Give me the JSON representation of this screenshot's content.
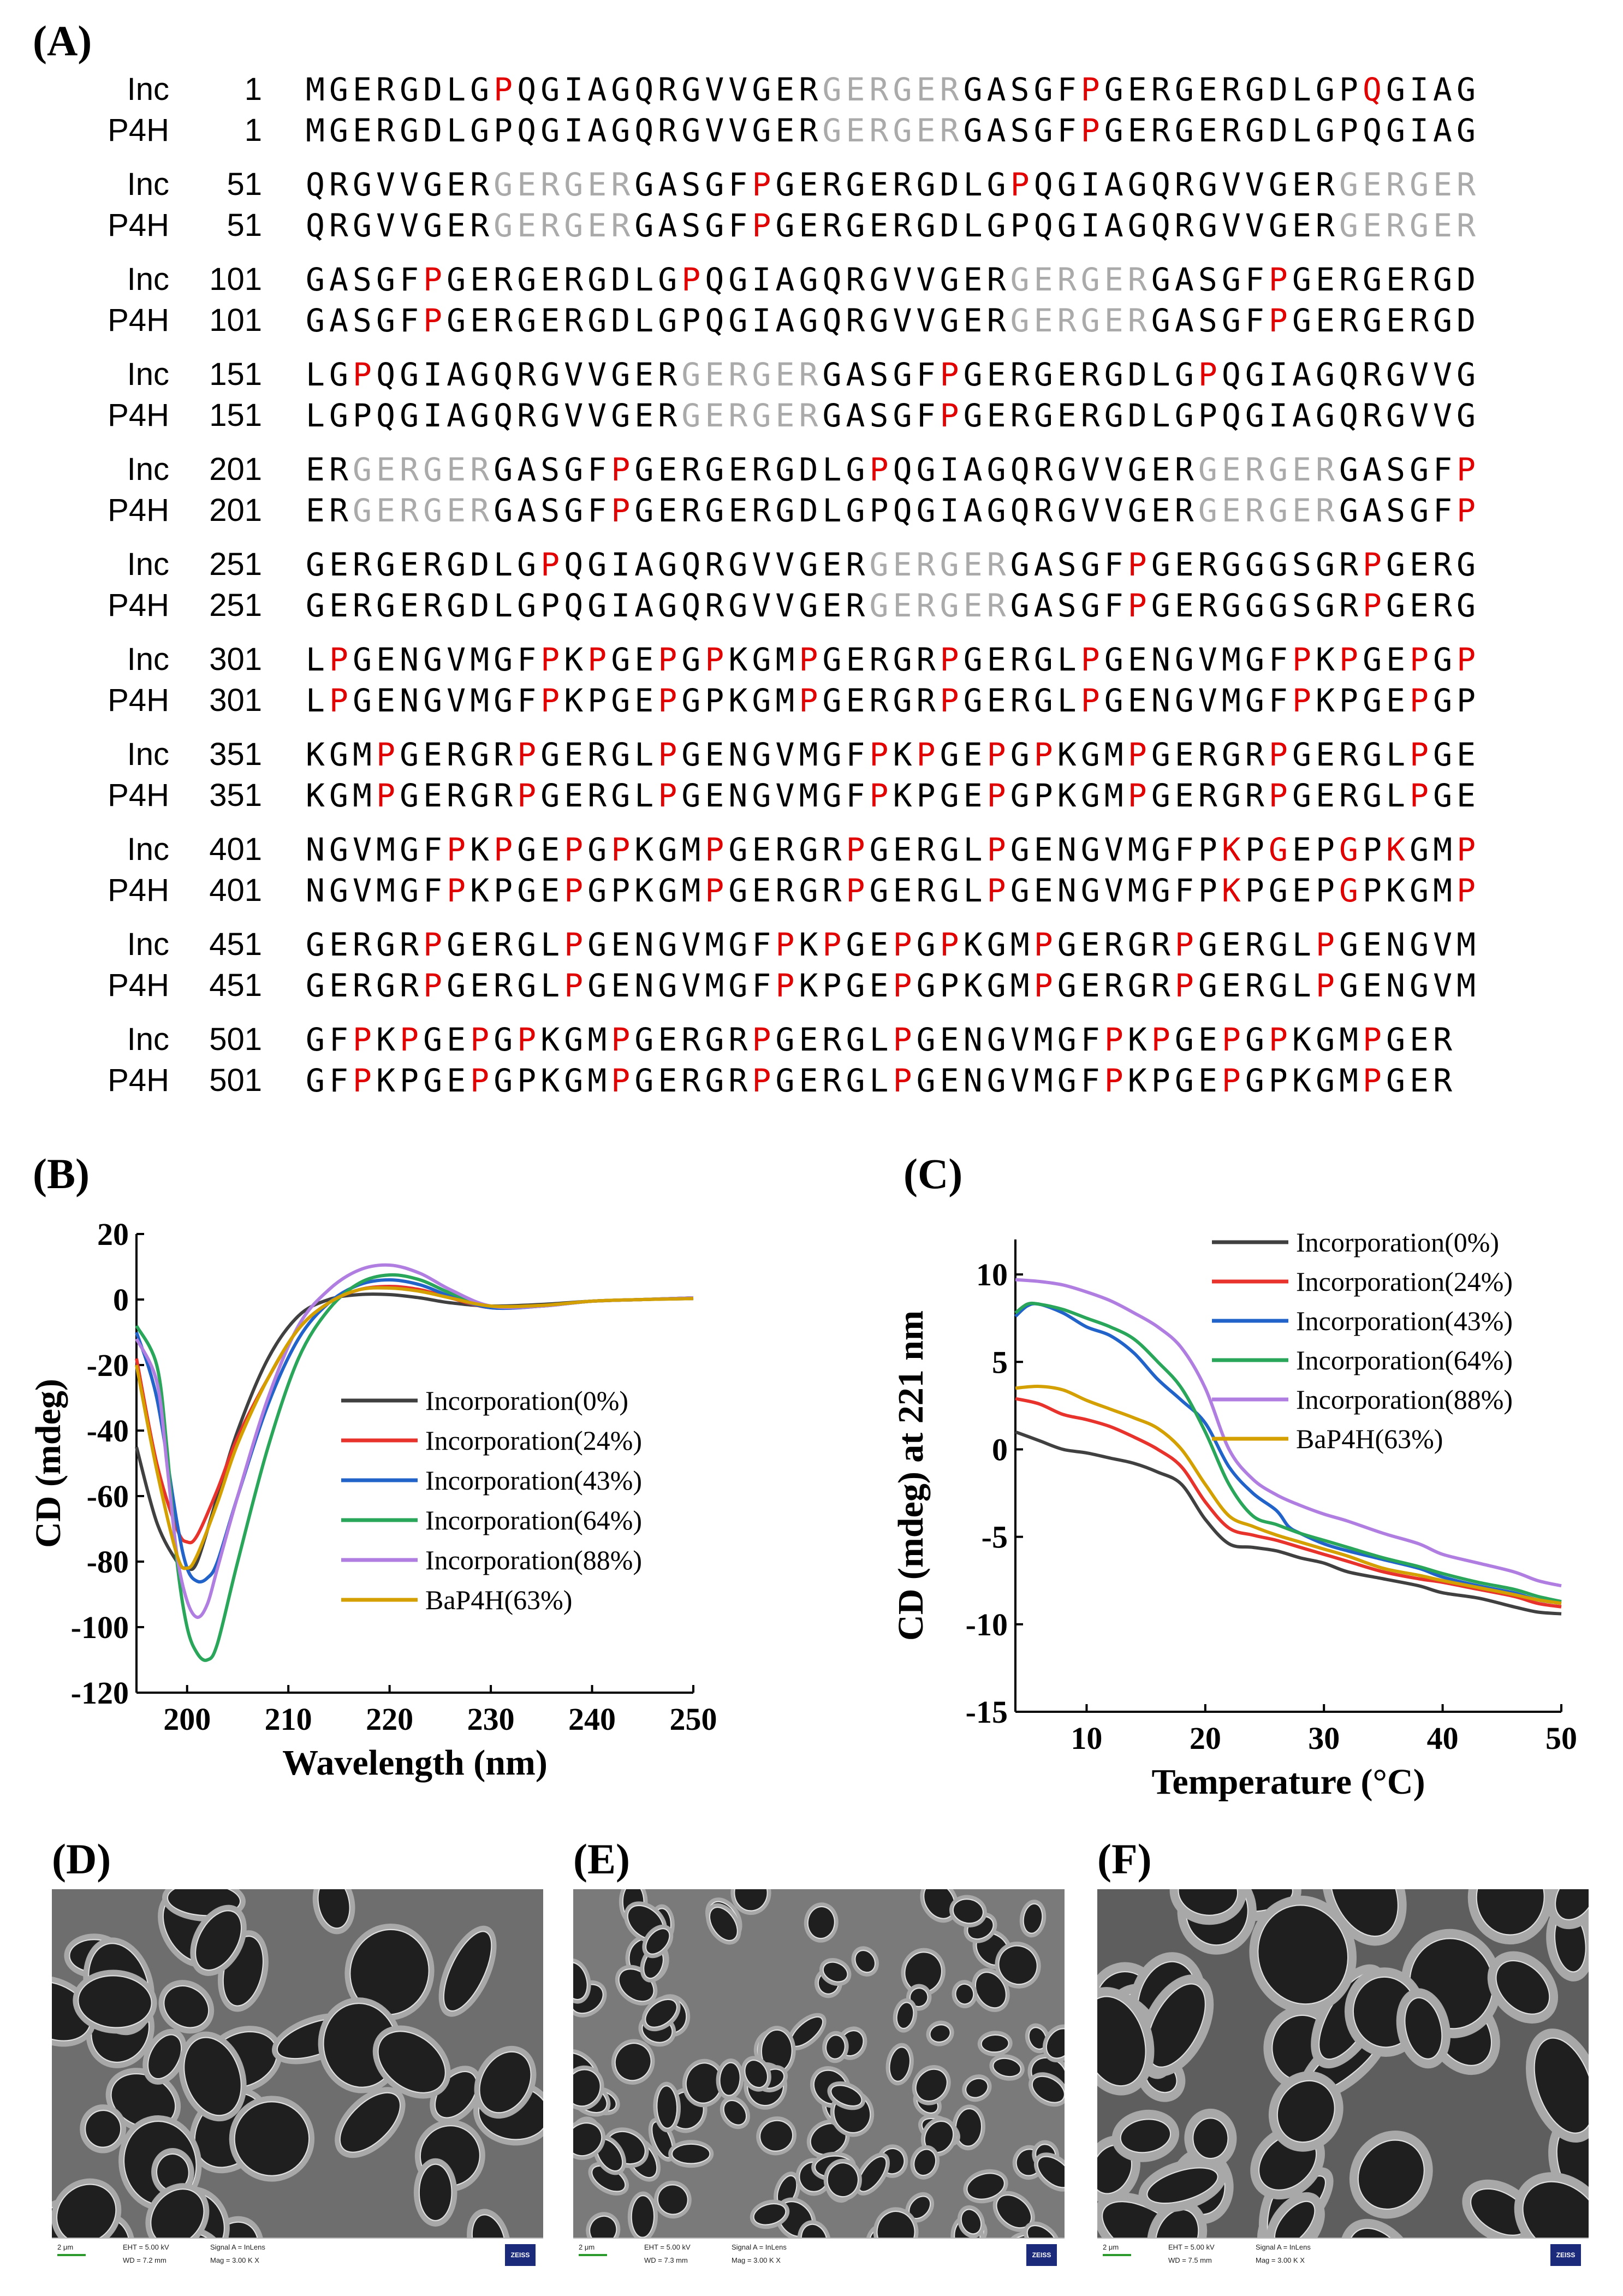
{
  "panel_labels": {
    "A": "(A)",
    "B": "(B)",
    "C": "(C)",
    "D": "(D)",
    "E": "(E)",
    "F": "(F)"
  },
  "alignment": {
    "rows": [
      {
        "name": "Inc",
        "num": "1",
        "seq": "MGERGDLGPQGIAGQRGVVGERGERGERGASGFPGERGERGDLGPQGIAG"
      },
      {
        "name": "P4H",
        "num": "1",
        "seq": "MGERGDLGPQGIAGQRGVVGERGERGERGASGFPGERGERGDLGPQGIAG"
      },
      {
        "name": "Inc",
        "num": "51",
        "seq": "QRGVVGERGERGERGASGFPGERGERGDLGPQGIAGQRGVVGERGERGER"
      },
      {
        "name": "P4H",
        "num": "51",
        "seq": "QRGVVGERGERGERGASGFPGERGERGDLGPQGIAGQRGVVGERGERGER"
      },
      {
        "name": "Inc",
        "num": "101",
        "seq": "GASGFPGERGERGDLGPQGIAGQRGVVGERGERGERGASGFPGERGERGD"
      },
      {
        "name": "P4H",
        "num": "101",
        "seq": "GASGFPGERGERGDLGPQGIAGQRGVVGERGERGERGASGFPGERGERGD"
      },
      {
        "name": "Inc",
        "num": "151",
        "seq": "LGPQGIAGQRGVVGERGERGERGASGFPGERGERGDLGPQGIAGQRGVVG"
      },
      {
        "name": "P4H",
        "num": "151",
        "seq": "LGPQGIAGQRGVVGERGERGERGASGFPGERGERGDLGPQGIAGQRGVVG"
      },
      {
        "name": "Inc",
        "num": "201",
        "seq": "ERGERGERGASGFPGERGERGDLGPQGIAGQRGVVGERGERGERGASGFP"
      },
      {
        "name": "P4H",
        "num": "201",
        "seq": "ERGERGERGASGFPGERGERGDLGPQGIAGQRGVVGERGERGERGASGFP"
      },
      {
        "name": "Inc",
        "num": "251",
        "seq": "GERGERGDLGPQGIAGQRGVVGERGERGERGASGFPGERGGGSGRPGERG"
      },
      {
        "name": "P4H",
        "num": "251",
        "seq": "GERGERGDLGPQGIAGQRGVVGERGERGERGASGFPGERGGGSGRPGERG"
      },
      {
        "name": "Inc",
        "num": "301",
        "seq": "LPGENGVMGFPKPGEPGPKGMPGERGRPGERGLPGENGVMGFPKPGEPGP"
      },
      {
        "name": "P4H",
        "num": "301",
        "seq": "LPGENGVMGFPKPGEPGPKGMPGERGRPGERGLPGENGVMGFPKPGEPGP"
      },
      {
        "name": "Inc",
        "num": "351",
        "seq": "KGMPGERGRPGERGLPGENGVMGFPKPGEPGPKGMPGERGRPGERGLPGE"
      },
      {
        "name": "P4H",
        "num": "351",
        "seq": "KGMPGERGRPGERGLPGENGVMGFPKPGEPGPKGMPGERGRPGERGLPGE"
      },
      {
        "name": "Inc",
        "num": "401",
        "seq": "NGVMGFPKPGEPGPKGMPGERGRPGERGLPGENGVMGFPKPGEPGPKGMP"
      },
      {
        "name": "P4H",
        "num": "401",
        "seq": "NGVMGFPKPGEPGPKGMPGERGRPGERGLPGENGVMGFPKPGEPGPKGMP"
      },
      {
        "name": "Inc",
        "num": "451",
        "seq": "GERGRPGERGLPGENGVMGFPKPGEPGPKGMPGERGRPGERGLPGENGVM"
      },
      {
        "name": "P4H",
        "num": "451",
        "seq": "GERGRPGERGLPGENGVMGFPKPGEPGPKGMPGERGRPGERGLPGENGVM"
      },
      {
        "name": "Inc",
        "num": "501",
        "seq": "GFPKPGEPGPKGMPGERGRPGERGLPGENGVMGFPKPGEPGPKGMPGER"
      },
      {
        "name": "P4H",
        "num": "501",
        "seq": "GFPKPGEPGPKGMPGERGRPGERGLPGENGVMGFPKPGEPGPKGMPGER"
      }
    ],
    "marks": [
      {
        "r": [
          8,
          33,
          45
        ],
        "gr": [
          22,
          28
        ]
      },
      {
        "r": [
          33
        ],
        "gr": [
          22,
          28
        ]
      },
      {
        "r": [
          19,
          30
        ],
        "gr": [
          8,
          14,
          44,
          50
        ]
      },
      {
        "r": [
          19
        ],
        "gr": [
          8,
          14,
          44,
          50
        ]
      },
      {
        "r": [
          5,
          16,
          41
        ],
        "gr": [
          30,
          36
        ]
      },
      {
        "r": [
          5,
          41
        ],
        "gr": [
          30,
          36
        ]
      },
      {
        "r": [
          2,
          27,
          38
        ],
        "gr": [
          16,
          22
        ]
      },
      {
        "r": [
          27
        ],
        "gr": [
          16,
          22
        ]
      },
      {
        "r": [
          13,
          24,
          49
        ],
        "gr": [
          2,
          8,
          38,
          44
        ]
      },
      {
        "r": [
          13,
          49
        ],
        "gr": [
          2,
          8,
          38,
          44
        ]
      },
      {
        "r": [
          10,
          35,
          45
        ],
        "gr": [
          24,
          30
        ]
      },
      {
        "r": [
          35,
          45
        ],
        "gr": [
          24,
          30
        ]
      },
      {
        "r": [
          1,
          10,
          12,
          15,
          17,
          21,
          27,
          33,
          42,
          44,
          47,
          49
        ],
        "gr": []
      },
      {
        "r": [
          1,
          10,
          15,
          21,
          27,
          33,
          42,
          47
        ],
        "gr": []
      },
      {
        "r": [
          3,
          9,
          15,
          24,
          26,
          29,
          31,
          35,
          41,
          47
        ],
        "gr": []
      },
      {
        "r": [
          3,
          9,
          15,
          24,
          29,
          35,
          41,
          47
        ],
        "gr": []
      },
      {
        "r": [
          6,
          8,
          11,
          13,
          17,
          23,
          29,
          39,
          41,
          44,
          46,
          49
        ],
        "gr": []
      },
      {
        "r": [
          6,
          11,
          17,
          23,
          29,
          39,
          44,
          49
        ],
        "gr": []
      },
      {
        "r": [
          5,
          11,
          20,
          22,
          25,
          27,
          31,
          37,
          43
        ],
        "gr": []
      },
      {
        "r": [
          5,
          11,
          20,
          25,
          31,
          37,
          43
        ],
        "gr": []
      },
      {
        "r": [
          2,
          4,
          7,
          9,
          13,
          19,
          25,
          34,
          36,
          39,
          41,
          45
        ],
        "gr": []
      },
      {
        "r": [
          2,
          7,
          13,
          19,
          25,
          34,
          39,
          45
        ],
        "gr": []
      }
    ]
  },
  "chart_data": [
    {
      "type": "line",
      "panel": "B",
      "xlabel": "Wavelength (nm)",
      "ylabel": "CD (mdeg)",
      "xlim": [
        195,
        250
      ],
      "ylim": [
        -120,
        20
      ],
      "xticks": [
        "200",
        "210",
        "220",
        "230",
        "240",
        "250"
      ],
      "yticks": [
        "20",
        "0",
        "-20",
        "-40",
        "-60",
        "-80",
        "-100",
        "-120"
      ],
      "legend": "center-right",
      "series": [
        {
          "name": "Incorporation(0%)",
          "color": "#404040",
          "x": [
            195,
            197,
            199,
            200,
            201,
            203,
            205,
            208,
            211,
            214,
            217,
            220,
            223,
            226,
            230,
            235,
            240,
            245,
            250
          ],
          "y": [
            -45,
            -68,
            -80,
            -82,
            -80,
            -60,
            -40,
            -18,
            -5,
            0,
            1.5,
            1.5,
            0.5,
            -1,
            -2,
            -1.5,
            -0.5,
            0,
            0.3
          ]
        },
        {
          "name": "Incorporation(24%)",
          "color": "#e8322c",
          "x": [
            195,
            197,
            199,
            200,
            201,
            203,
            205,
            208,
            211,
            214,
            217,
            220,
            223,
            226,
            230,
            235,
            240,
            245,
            250
          ],
          "y": [
            -18,
            -50,
            -70,
            -74,
            -72,
            -58,
            -42,
            -24,
            -9,
            -1,
            3,
            4,
            3,
            0.5,
            -2.5,
            -2,
            -0.5,
            0,
            0.5
          ]
        },
        {
          "name": "Incorporation(43%)",
          "color": "#2163c9",
          "x": [
            195,
            197,
            199,
            200,
            201,
            202,
            203,
            205,
            208,
            211,
            214,
            217,
            220,
            223,
            226,
            230,
            235,
            240,
            245,
            250
          ],
          "y": [
            -10,
            -30,
            -68,
            -82,
            -86,
            -85,
            -80,
            -60,
            -32,
            -12,
            -1,
            4.5,
            6,
            4.5,
            1,
            -2.5,
            -2,
            -0.5,
            0,
            0.5
          ]
        },
        {
          "name": "Incorporation(64%)",
          "color": "#2aa65a",
          "x": [
            195,
            197,
            198,
            199,
            200,
            201,
            202,
            203,
            205,
            208,
            211,
            214,
            217,
            220,
            223,
            226,
            230,
            235,
            240,
            245,
            250
          ],
          "y": [
            -8,
            -20,
            -45,
            -80,
            -100,
            -108,
            -110,
            -105,
            -80,
            -45,
            -18,
            -3,
            5,
            7.5,
            6,
            2,
            -2,
            -2,
            -0.5,
            0,
            0.5
          ]
        },
        {
          "name": "Incorporation(88%)",
          "color": "#b07ee0",
          "x": [
            195,
            197,
            198,
            199,
            200,
            201,
            202,
            203,
            205,
            208,
            211,
            214,
            217,
            220,
            223,
            226,
            230,
            235,
            240,
            245,
            250
          ],
          "y": [
            -12,
            -25,
            -50,
            -78,
            -92,
            -97,
            -93,
            -82,
            -60,
            -30,
            -8,
            3,
            9,
            10.5,
            8,
            3,
            -2,
            -2,
            -0.5,
            0,
            0.5
          ]
        },
        {
          "name": "BaP4H(63%)",
          "color": "#d4a000",
          "x": [
            195,
            197,
            199,
            200,
            201,
            203,
            205,
            208,
            211,
            214,
            217,
            220,
            223,
            226,
            230,
            235,
            240,
            245,
            250
          ],
          "y": [
            -20,
            -52,
            -78,
            -82,
            -78,
            -62,
            -44,
            -24,
            -9,
            -1,
            3,
            3.5,
            2.5,
            0.5,
            -2,
            -1.8,
            -0.5,
            0,
            0.3
          ]
        }
      ]
    },
    {
      "type": "line",
      "panel": "C",
      "xlabel": "Temperature (°C)",
      "ylabel": "CD (mdeg) at 221 nm",
      "xlim": [
        4,
        50
      ],
      "ylim": [
        -15,
        12
      ],
      "xticks": [
        "10",
        "20",
        "30",
        "40",
        "50"
      ],
      "yticks": [
        "10",
        "5",
        "0",
        "-5",
        "-10",
        "-15"
      ],
      "legend": "top-right",
      "series": [
        {
          "name": "Incorporation(0%)",
          "color": "#404040",
          "x": [
            4,
            6,
            8,
            10,
            12,
            14,
            16,
            18,
            20,
            22,
            24,
            26,
            28,
            30,
            32,
            35,
            38,
            40,
            43,
            46,
            48,
            50
          ],
          "y": [
            1,
            0.5,
            0,
            -0.2,
            -0.5,
            -0.8,
            -1.3,
            -2,
            -4,
            -5.4,
            -5.6,
            -5.8,
            -6.2,
            -6.5,
            -7,
            -7.4,
            -7.8,
            -8.2,
            -8.5,
            -9,
            -9.3,
            -9.4
          ]
        },
        {
          "name": "Incorporation(24%)",
          "color": "#e8322c",
          "x": [
            4,
            6,
            8,
            10,
            12,
            14,
            16,
            18,
            20,
            22,
            24,
            26,
            28,
            30,
            32,
            35,
            38,
            40,
            43,
            46,
            48,
            50
          ],
          "y": [
            2.9,
            2.6,
            2,
            1.7,
            1.3,
            0.7,
            0,
            -1,
            -3,
            -4.5,
            -4.9,
            -5.2,
            -5.6,
            -6,
            -6.4,
            -7,
            -7.4,
            -7.6,
            -8,
            -8.4,
            -8.8,
            -9
          ]
        },
        {
          "name": "Incorporation(43%)",
          "color": "#2163c9",
          "x": [
            4,
            5,
            6,
            8,
            10,
            12,
            14,
            16,
            18,
            20,
            22,
            24,
            26,
            27,
            28,
            30,
            32,
            35,
            38,
            40,
            43,
            46,
            48,
            50
          ],
          "y": [
            7.6,
            8.2,
            8.3,
            7.8,
            7,
            6.5,
            5.5,
            4,
            2.8,
            1.5,
            -1,
            -2.5,
            -3.5,
            -4.4,
            -4.8,
            -5.4,
            -5.8,
            -6.3,
            -6.8,
            -7.3,
            -7.8,
            -8.2,
            -8.6,
            -8.8
          ]
        },
        {
          "name": "Incorporation(64%)",
          "color": "#2aa65a",
          "x": [
            4,
            5,
            6,
            8,
            10,
            12,
            14,
            16,
            18,
            20,
            22,
            24,
            26,
            28,
            30,
            32,
            35,
            38,
            40,
            43,
            46,
            48,
            50
          ],
          "y": [
            7.8,
            8.3,
            8.3,
            8,
            7.5,
            7,
            6.3,
            5,
            3.5,
            1,
            -2,
            -3.8,
            -4.3,
            -4.8,
            -5.2,
            -5.6,
            -6.2,
            -6.7,
            -7.1,
            -7.6,
            -8,
            -8.4,
            -8.7
          ]
        },
        {
          "name": "Incorporation(88%)",
          "color": "#b07ee0",
          "x": [
            4,
            6,
            8,
            10,
            12,
            14,
            16,
            18,
            20,
            22,
            24,
            26,
            28,
            30,
            32,
            35,
            38,
            40,
            43,
            46,
            48,
            50
          ],
          "y": [
            9.7,
            9.6,
            9.4,
            9,
            8.5,
            7.8,
            7,
            5.8,
            3.5,
            0,
            -1.7,
            -2.6,
            -3.2,
            -3.7,
            -4.1,
            -4.8,
            -5.4,
            -6,
            -6.5,
            -7,
            -7.5,
            -7.8
          ]
        },
        {
          "name": "BaP4H(63%)",
          "color": "#d4a000",
          "x": [
            4,
            6,
            8,
            10,
            12,
            14,
            16,
            18,
            20,
            22,
            24,
            26,
            28,
            30,
            32,
            35,
            38,
            40,
            43,
            46,
            48,
            50
          ],
          "y": [
            3.5,
            3.6,
            3.4,
            2.8,
            2.3,
            1.8,
            1.2,
            0,
            -2,
            -3.8,
            -4.4,
            -4.9,
            -5.3,
            -5.7,
            -6.1,
            -6.8,
            -7.2,
            -7.5,
            -7.9,
            -8.3,
            -8.6,
            -8.8
          ]
        }
      ]
    }
  ],
  "sem": [
    {
      "scale": "2 μm",
      "eht": "EHT = 5.00 kV",
      "wd": "WD = 7.2 mm",
      "signal": "Signal A = InLens",
      "mag": "Mag =  3.00 K X",
      "brand": "ZEISS"
    },
    {
      "scale": "2 μm",
      "eht": "EHT = 5.00 kV",
      "wd": "WD = 7.3 mm",
      "signal": "Signal A = InLens",
      "mag": "Mag =  3.00 K X",
      "brand": "ZEISS"
    },
    {
      "scale": "2 μm",
      "eht": "EHT = 5.00 kV",
      "wd": "WD = 7.5 mm",
      "signal": "Signal A = InLens",
      "mag": "Mag =  3.00 K X",
      "brand": "ZEISS"
    }
  ]
}
